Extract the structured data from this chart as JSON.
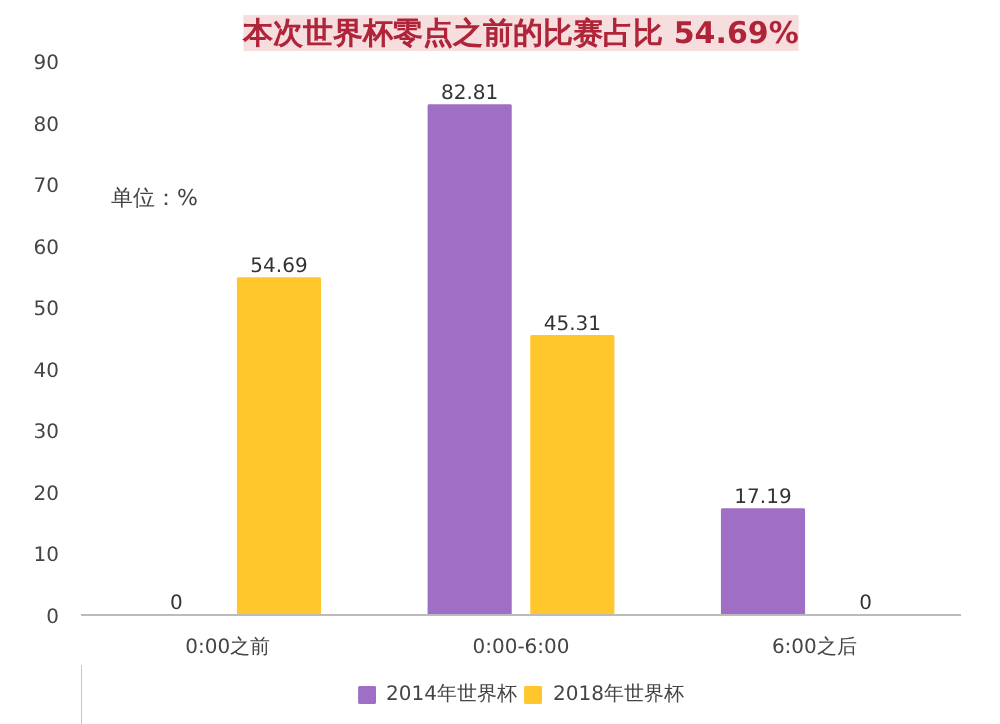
{
  "chart_data": {
    "type": "bar",
    "title": "本次世界杯零点之前的比赛占比 54.69%",
    "annotations": [
      "单位：%"
    ],
    "categories": [
      "0:00之前",
      "0:00-6:00",
      "6:00之后"
    ],
    "series": [
      {
        "name": "2014年世界杯",
        "color": "#9e6fc4",
        "values": [
          0,
          82.81,
          17.19
        ]
      },
      {
        "name": "2018年世界杯",
        "color": "#ffc72c",
        "values": [
          54.69,
          45.31,
          0
        ]
      }
    ],
    "ylim": [
      0,
      90
    ],
    "yticks": [
      0,
      10,
      20,
      30,
      40,
      50,
      60,
      70,
      80,
      90
    ],
    "data_labels": true,
    "legend": "bottom",
    "grid": false
  }
}
